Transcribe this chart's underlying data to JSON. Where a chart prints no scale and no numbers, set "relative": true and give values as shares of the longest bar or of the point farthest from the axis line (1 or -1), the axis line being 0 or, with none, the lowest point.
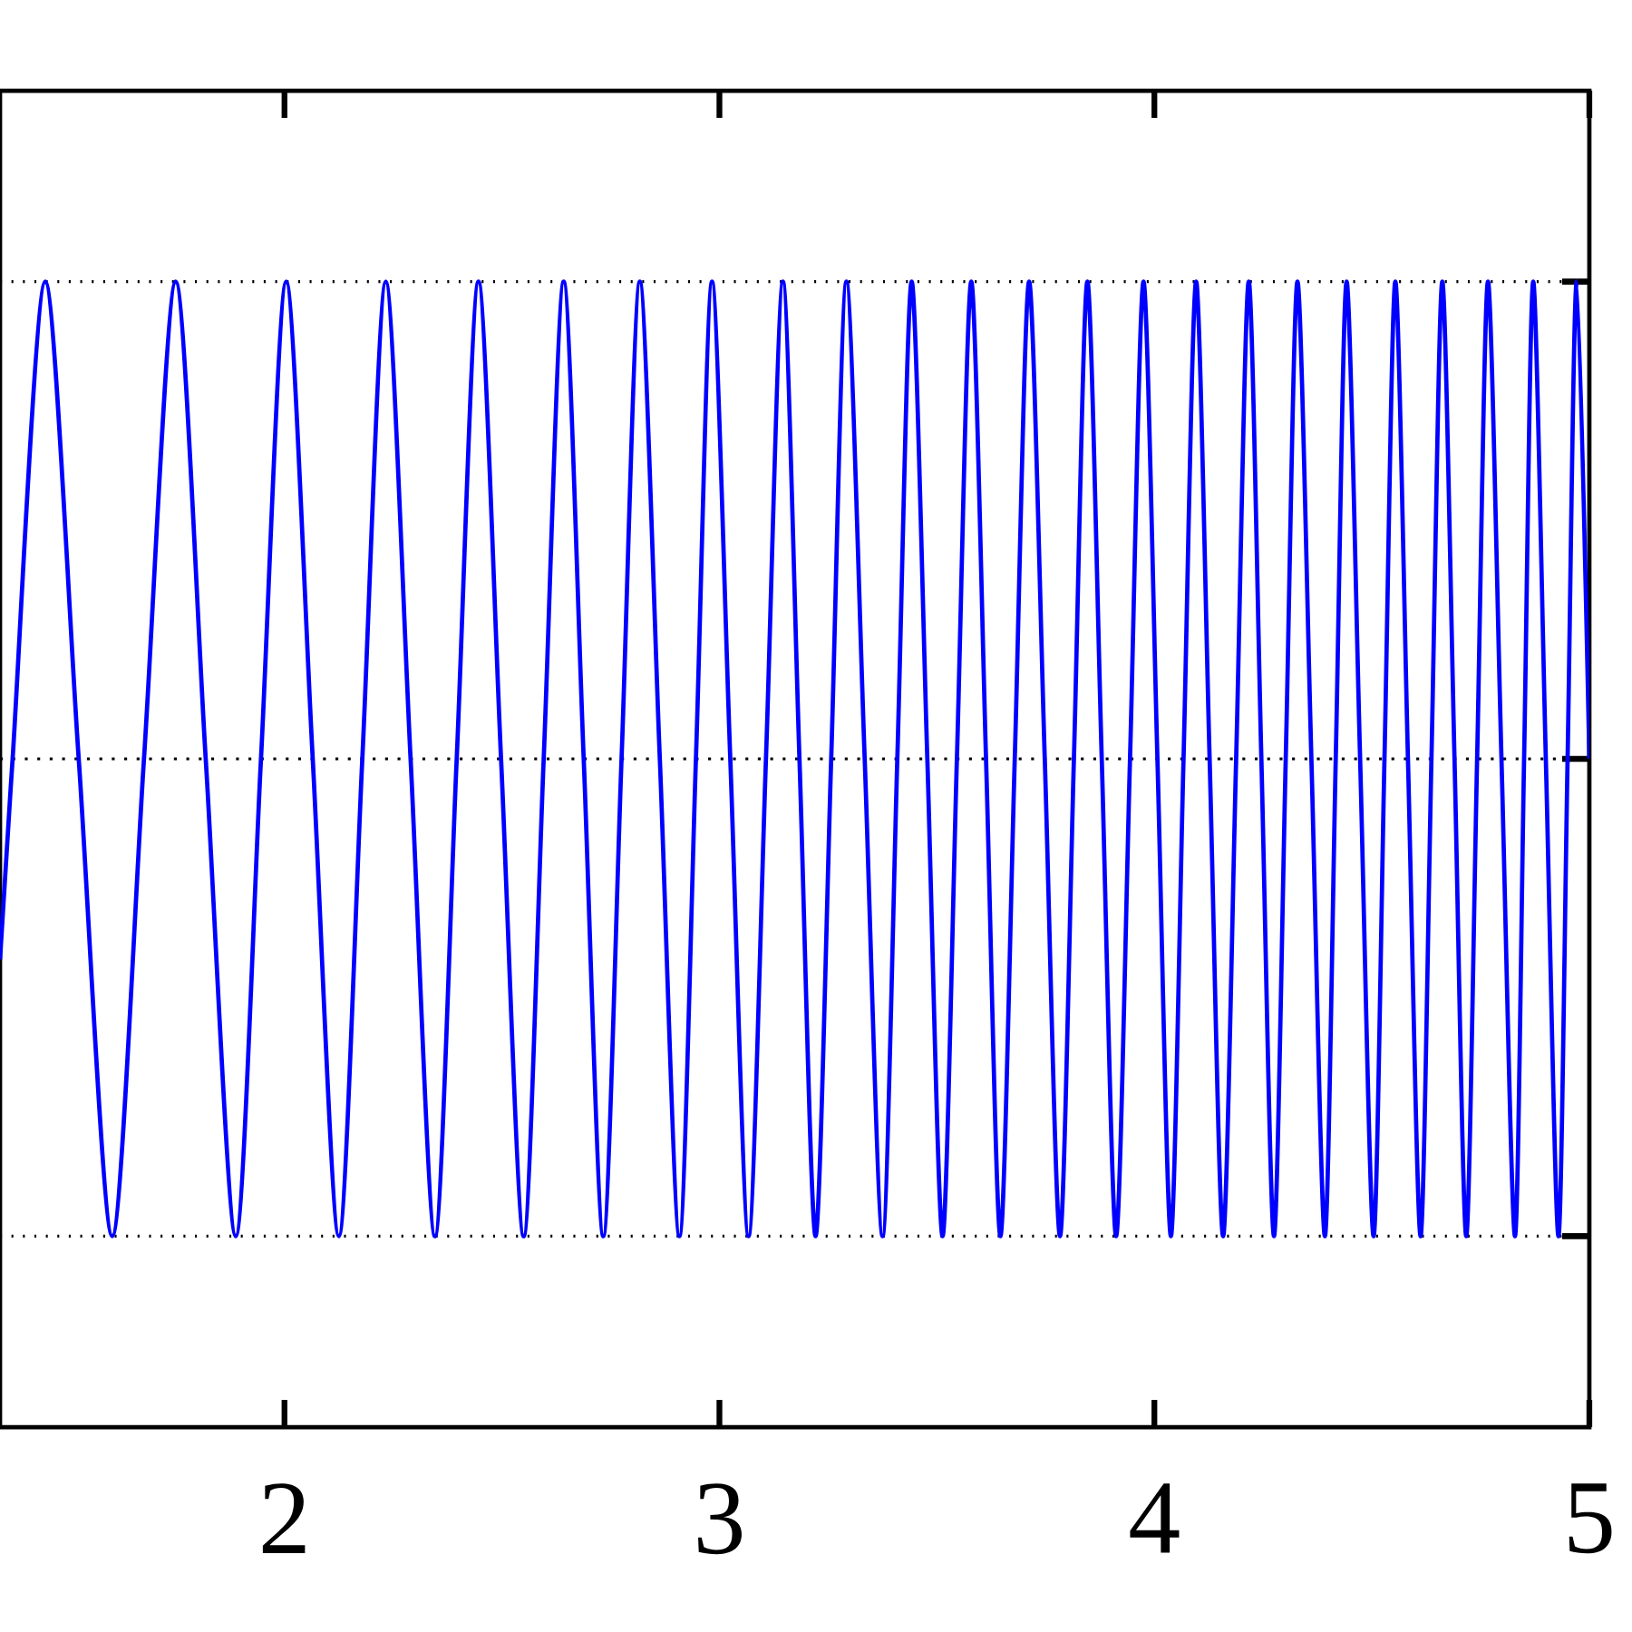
{
  "chart_data": {
    "type": "line",
    "relative": true,
    "xlim": [
      1.346,
      5
    ],
    "xticks": [
      2,
      3,
      4,
      5
    ],
    "grid": "y",
    "tick_labels": "x",
    "marker": "none",
    "line_style": "solid",
    "ref_lines": [
      {
        "axis": "y",
        "value": 0,
        "line_style": "dotted",
        "color": "#000000"
      }
    ],
    "x": [
      1.346,
      1.375,
      1.45,
      1.527,
      1.604,
      1.677,
      1.75,
      1.819,
      1.888,
      1.946,
      2.004,
      2.065,
      2.125,
      2.179,
      2.233,
      2.29,
      2.346,
      2.396,
      2.446,
      2.498,
      2.55,
      2.596,
      2.642,
      2.688,
      2.733,
      2.775,
      2.817,
      2.863,
      2.908,
      2.946,
      2.983,
      3.025,
      3.067,
      3.107,
      3.146,
      3.184,
      3.221,
      3.257,
      3.292,
      3.334,
      3.375,
      3.409,
      3.442,
      3.478,
      3.513,
      3.546,
      3.579,
      3.613,
      3.646,
      3.679,
      3.712,
      3.748,
      3.783,
      3.815,
      3.846,
      3.879,
      3.912,
      3.944,
      3.975,
      4.007,
      4.038,
      4.067,
      4.096,
      4.127,
      4.158,
      4.188,
      4.217,
      4.246,
      4.275,
      4.302,
      4.329,
      4.361,
      4.392,
      4.417,
      4.442,
      4.473,
      4.504,
      4.529,
      4.554,
      4.583,
      4.612,
      4.637,
      4.662,
      4.69,
      4.717,
      4.742,
      4.767,
      4.798,
      4.829,
      4.85,
      4.871,
      4.9,
      4.929,
      4.95,
      4.971,
      5.0
    ],
    "series": [
      {
        "color": "#0000ff",
        "values": [
          -0.42,
          0,
          1,
          0,
          -1,
          0,
          1,
          0,
          -1,
          0,
          1,
          0,
          -1,
          0,
          1,
          0,
          -1,
          0,
          1,
          0,
          -1,
          0,
          1,
          0,
          -1,
          0,
          1,
          0,
          -1,
          0,
          1,
          0,
          -1,
          0,
          1,
          0,
          -1,
          0,
          1,
          0,
          -1,
          0,
          1,
          0,
          -1,
          0,
          1,
          0,
          -1,
          0,
          1,
          0,
          -1,
          0,
          1,
          0,
          -1,
          0,
          1,
          0,
          -1,
          0,
          1,
          0,
          -1,
          0,
          1,
          0,
          -1,
          0,
          1,
          0,
          -1,
          0,
          1,
          0,
          -1,
          0,
          1,
          0,
          -1,
          0,
          1,
          0,
          -1,
          0,
          1,
          0,
          -1,
          0,
          1,
          0,
          -1,
          0,
          1,
          0
        ]
      }
    ]
  }
}
